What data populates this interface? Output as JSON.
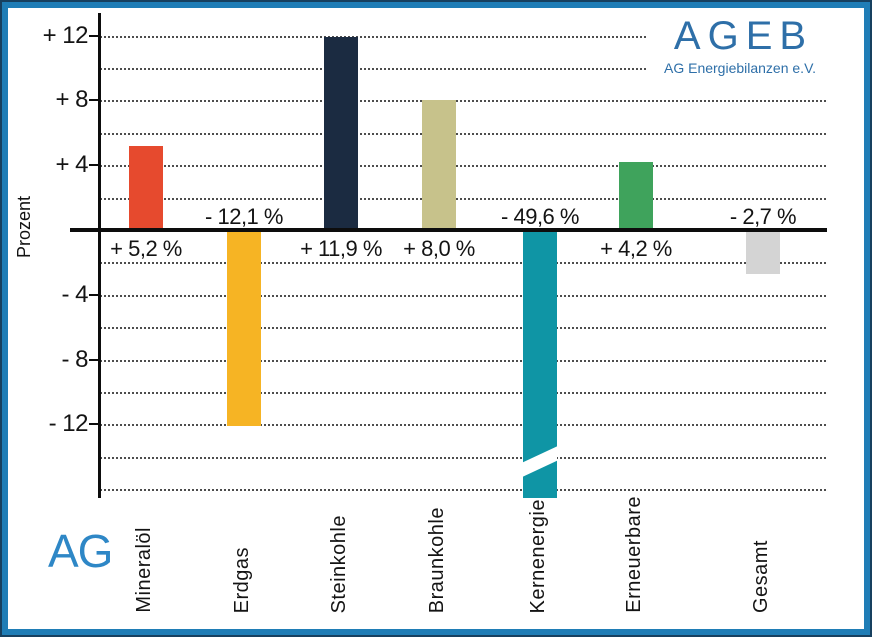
{
  "branding": {
    "logo_text": "AGEB",
    "logo_subtitle": "AG Energiebilanzen e.V.",
    "corner_text": "AG",
    "logo_color": "#2e6fa8",
    "corner_color": "#2e87c6",
    "frame_color": "#1f7db6"
  },
  "chart_data": {
    "type": "bar",
    "title": "",
    "xlabel": "",
    "ylabel": "Prozent",
    "categories": [
      "Mineralöl",
      "Erdgas",
      "Steinkohle",
      "Braunkohle",
      "Kernenergie",
      "Erneuerbare",
      "Gesamt"
    ],
    "values": [
      5.2,
      -12.1,
      11.9,
      8.0,
      -49.6,
      4.2,
      -2.7
    ],
    "value_labels": [
      "+ 5,2 %",
      "- 12,1 %",
      "+ 11,9 %",
      "+ 8,0 %",
      "- 49,6 %",
      "+ 4,2 %",
      "- 2,7 %"
    ],
    "bar_colors": [
      "#e64a2e",
      "#f6b424",
      "#1b2b41",
      "#c7c28b",
      "#0f95a5",
      "#3fa35c",
      "#d4d4d4"
    ],
    "ylim": [
      -16.6,
      13.4
    ],
    "gridline_step": 2,
    "grid_style": "dotted",
    "legend": "none",
    "yticks": [
      {
        "value": 12,
        "label": "+ 12"
      },
      {
        "value": 8,
        "label": "+ 8"
      },
      {
        "value": 4,
        "label": "+ 4"
      },
      {
        "value": -4,
        "label": "- 4"
      },
      {
        "value": -8,
        "label": "- 8"
      },
      {
        "value": -12,
        "label": "- 12"
      }
    ],
    "axis_break": {
      "category": "Kernenergie",
      "note": "bar clipped at bottom of axis; value exceeds visible scale"
    }
  }
}
